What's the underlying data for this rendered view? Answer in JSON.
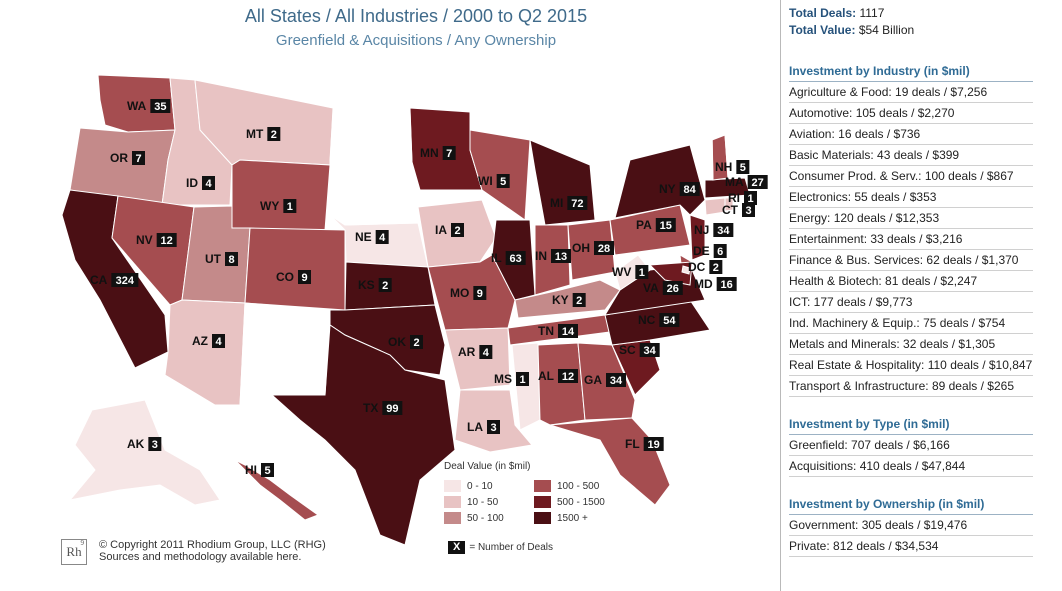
{
  "header": {
    "title": "All States / All Industries / 2000 to Q2 2015",
    "subtitle": "Greenfield & Acquisitions / Any Ownership"
  },
  "colors": {
    "c0": "#f6e6e6",
    "c1": "#e8c3c3",
    "c2": "#c48a8a",
    "c3": "#a54d50",
    "c4": "#6e1a20",
    "c5": "#4a0f14",
    "none": "#ffffff",
    "accent": "#2f6b95"
  },
  "states": [
    {
      "code": "WA",
      "deals": "35",
      "bin": "c3"
    },
    {
      "code": "OR",
      "deals": "7",
      "bin": "c2"
    },
    {
      "code": "CA",
      "deals": "324",
      "bin": "c5"
    },
    {
      "code": "ID",
      "deals": "4",
      "bin": "c1"
    },
    {
      "code": "NV",
      "deals": "12",
      "bin": "c3"
    },
    {
      "code": "MT",
      "deals": "2",
      "bin": "c1"
    },
    {
      "code": "WY",
      "deals": "1",
      "bin": "c3"
    },
    {
      "code": "UT",
      "deals": "8",
      "bin": "c2"
    },
    {
      "code": "AZ",
      "deals": "4",
      "bin": "c1"
    },
    {
      "code": "CO",
      "deals": "9",
      "bin": "c3"
    },
    {
      "code": "NE",
      "deals": "4",
      "bin": "c0"
    },
    {
      "code": "KS",
      "deals": "2",
      "bin": "c5"
    },
    {
      "code": "OK",
      "deals": "2",
      "bin": "c5"
    },
    {
      "code": "TX",
      "deals": "99",
      "bin": "c5"
    },
    {
      "code": "MN",
      "deals": "7",
      "bin": "c4"
    },
    {
      "code": "IA",
      "deals": "2",
      "bin": "c1"
    },
    {
      "code": "MO",
      "deals": "9",
      "bin": "c3"
    },
    {
      "code": "AR",
      "deals": "4",
      "bin": "c1"
    },
    {
      "code": "LA",
      "deals": "3",
      "bin": "c1"
    },
    {
      "code": "WI",
      "deals": "5",
      "bin": "c3"
    },
    {
      "code": "IL",
      "deals": "63",
      "bin": "c5"
    },
    {
      "code": "MI",
      "deals": "72",
      "bin": "c5"
    },
    {
      "code": "IN",
      "deals": "13",
      "bin": "c3"
    },
    {
      "code": "OH",
      "deals": "28",
      "bin": "c3"
    },
    {
      "code": "KY",
      "deals": "2",
      "bin": "c2"
    },
    {
      "code": "TN",
      "deals": "14",
      "bin": "c3"
    },
    {
      "code": "MS",
      "deals": "1",
      "bin": "c0"
    },
    {
      "code": "AL",
      "deals": "12",
      "bin": "c3"
    },
    {
      "code": "GA",
      "deals": "34",
      "bin": "c3"
    },
    {
      "code": "FL",
      "deals": "19",
      "bin": "c3"
    },
    {
      "code": "SC",
      "deals": "34",
      "bin": "c4"
    },
    {
      "code": "NC",
      "deals": "54",
      "bin": "c5"
    },
    {
      "code": "VA",
      "deals": "26",
      "bin": "c5"
    },
    {
      "code": "WV",
      "deals": "1",
      "bin": "c0"
    },
    {
      "code": "PA",
      "deals": "15",
      "bin": "c3"
    },
    {
      "code": "NY",
      "deals": "84",
      "bin": "c5"
    },
    {
      "code": "NJ",
      "deals": "34",
      "bin": "c4"
    },
    {
      "code": "DE",
      "deals": "6",
      "bin": "c3"
    },
    {
      "code": "MD",
      "deals": "16",
      "bin": "c4"
    },
    {
      "code": "DC",
      "deals": "2",
      "bin": "c0"
    },
    {
      "code": "CT",
      "deals": "3",
      "bin": "c1"
    },
    {
      "code": "RI",
      "deals": "1",
      "bin": "c1"
    },
    {
      "code": "MA",
      "deals": "27",
      "bin": "c5"
    },
    {
      "code": "NH",
      "deals": "5",
      "bin": "c3"
    },
    {
      "code": "VT",
      "deals": "",
      "bin": "none"
    },
    {
      "code": "ME",
      "deals": "",
      "bin": "none"
    },
    {
      "code": "ND",
      "deals": "",
      "bin": "none"
    },
    {
      "code": "SD",
      "deals": "",
      "bin": "none"
    },
    {
      "code": "NM",
      "deals": "",
      "bin": "none"
    },
    {
      "code": "AK",
      "deals": "3",
      "bin": "c0"
    },
    {
      "code": "HI",
      "deals": "5",
      "bin": "c3"
    }
  ],
  "legend": {
    "title": "Deal Value (in $mil)",
    "items": [
      {
        "label": "0 - 10",
        "bin": "c0"
      },
      {
        "label": "100 - 500",
        "bin": "c3"
      },
      {
        "label": "10 - 50",
        "bin": "c1"
      },
      {
        "label": "500 - 1500",
        "bin": "c4"
      },
      {
        "label": "50 - 100",
        "bin": "c2"
      },
      {
        "label": "1500 +",
        "bin": "c5"
      }
    ],
    "deals_key_symbol": "X",
    "deals_key_text": "= Number of Deals"
  },
  "copyright": {
    "logo": "Rh",
    "logo_sup": "9",
    "line1": "© Copyright 2011 Rhodium Group, LLC (RHG)",
    "line2": "Sources and methodology available here."
  },
  "summary": {
    "total_deals_label": "Total Deals:",
    "total_deals_value": "1117",
    "total_value_label": "Total Value:",
    "total_value_value": "$54 Billion"
  },
  "by_industry": {
    "title": "Investment by Industry (in $mil)",
    "rows": [
      "Agriculture & Food: 19 deals / $7,256",
      "Automotive: 105 deals / $2,270",
      "Aviation: 16 deals / $736",
      "Basic Materials: 43 deals / $399",
      "Consumer Prod. & Serv.: 100 deals / $867",
      "Electronics: 55 deals / $353",
      "Energy: 120 deals / $12,353",
      "Entertainment: 33 deals / $3,216",
      "Finance & Bus. Services: 62 deals / $1,370",
      "Health & Biotech: 81 deals / $2,247",
      "ICT: 177 deals / $9,773",
      "Ind. Machinery & Equip.: 75 deals / $754",
      "Metals and Minerals: 32 deals / $1,305",
      "Real Estate & Hospitality: 110 deals / $10,847",
      "Transport & Infrastructure: 89 deals / $265"
    ]
  },
  "by_type": {
    "title": "Investment by Type (in $mil)",
    "rows": [
      "Greenfield: 707 deals / $6,166",
      "Acquisitions: 410 deals / $47,844"
    ]
  },
  "by_ownership": {
    "title": "Investment by Ownership (in $mil)",
    "rows": [
      "Government: 305 deals / $19,476",
      "Private: 812 deals / $34,534"
    ]
  }
}
